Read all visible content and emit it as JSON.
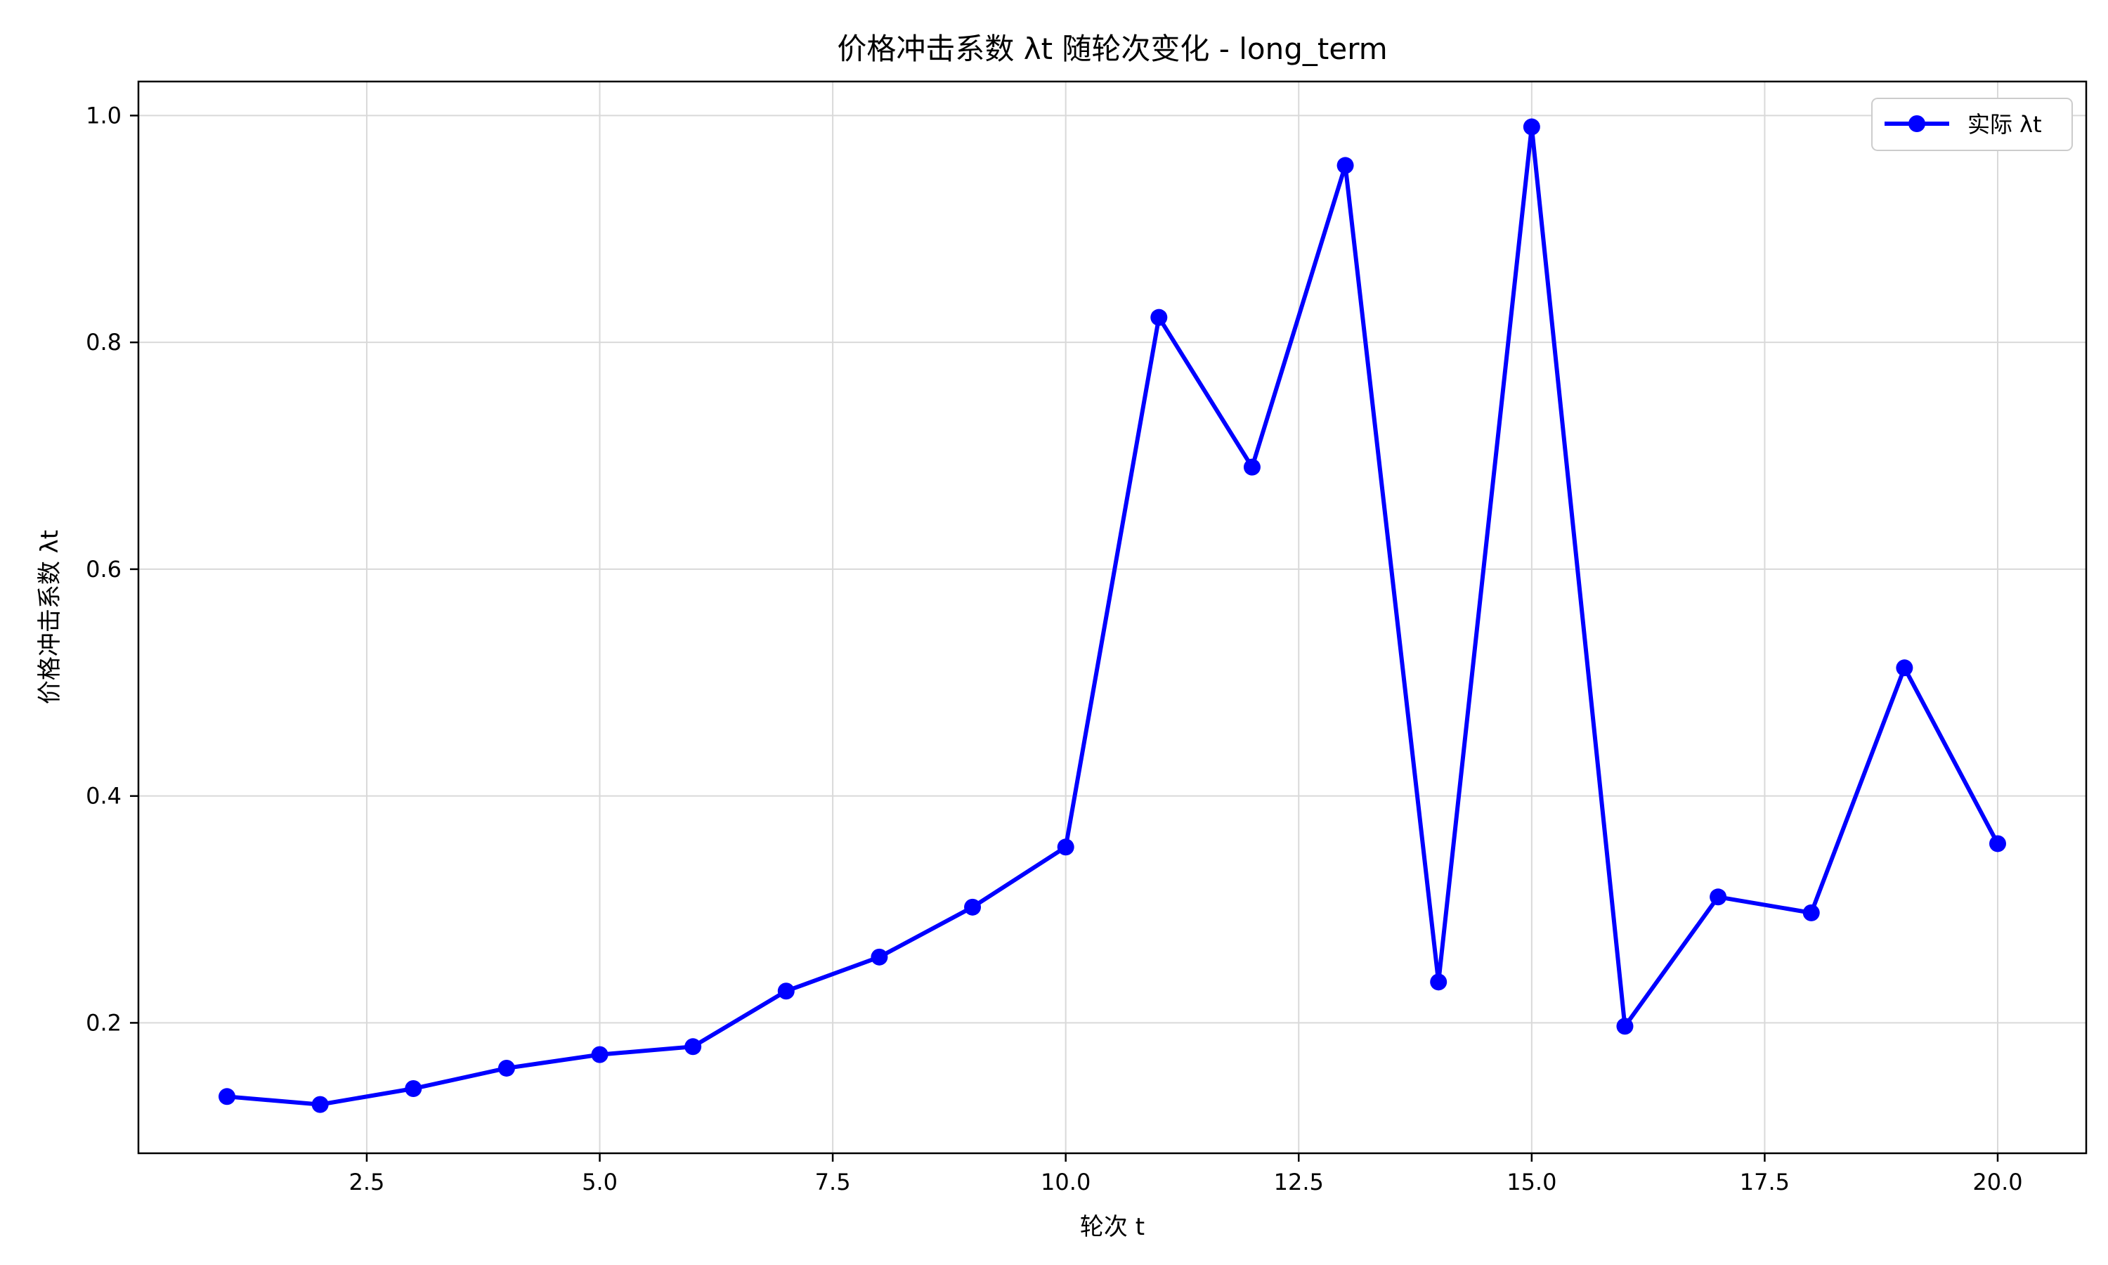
{
  "chart_data": {
    "type": "line",
    "title": "价格冲击系数 λt 随轮次变化 - long_term",
    "xlabel": "轮次 t",
    "ylabel": "价格冲击系数 λt",
    "xlim": [
      0.05,
      20.95
    ],
    "ylim": [
      0.085,
      1.03
    ],
    "xticks": [
      2.5,
      5.0,
      7.5,
      10.0,
      12.5,
      15.0,
      17.5,
      20.0
    ],
    "xtick_labels": [
      "2.5",
      "5.0",
      "7.5",
      "10.0",
      "12.5",
      "15.0",
      "17.5",
      "20.0"
    ],
    "yticks": [
      0.2,
      0.4,
      0.6,
      0.8,
      1.0
    ],
    "ytick_labels": [
      "0.2",
      "0.4",
      "0.6",
      "0.8",
      "1.0"
    ],
    "grid": true,
    "legend_position": "top-right",
    "series": [
      {
        "name": "实际 λt",
        "color": "#0000ff",
        "marker": "circle",
        "x": [
          1,
          2,
          3,
          4,
          5,
          6,
          7,
          8,
          9,
          10,
          11,
          12,
          13,
          14,
          15,
          16,
          17,
          18,
          19,
          20
        ],
        "y": [
          0.135,
          0.128,
          0.142,
          0.16,
          0.172,
          0.179,
          0.228,
          0.258,
          0.302,
          0.355,
          0.822,
          0.69,
          0.956,
          0.236,
          0.99,
          0.197,
          0.311,
          0.297,
          0.513,
          0.358
        ]
      }
    ]
  }
}
